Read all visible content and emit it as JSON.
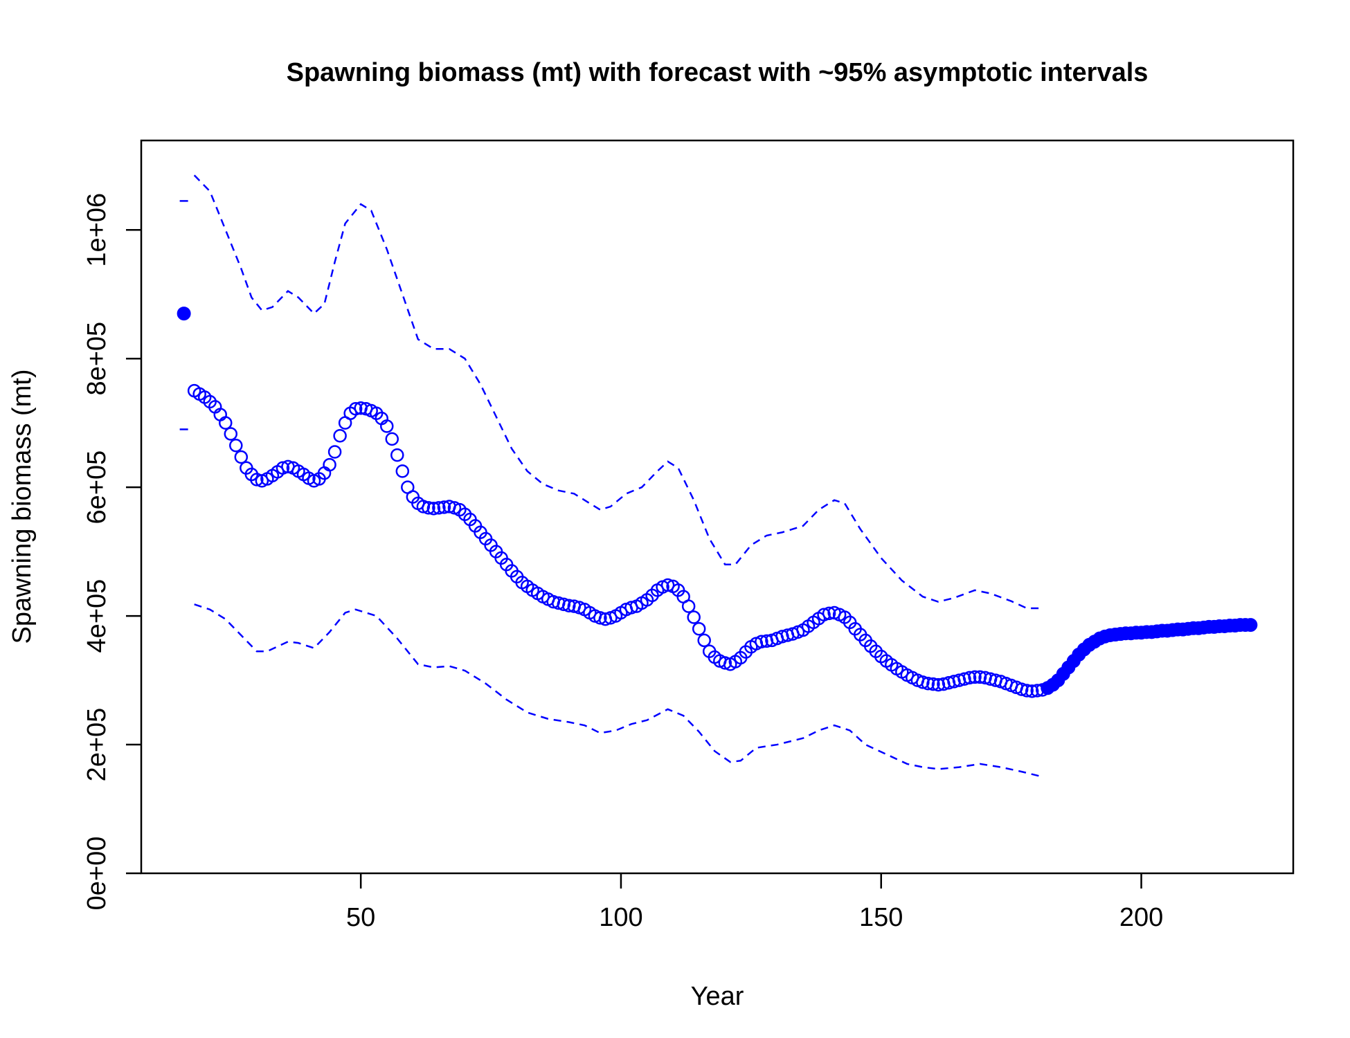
{
  "chart_data": {
    "type": "line",
    "title": "Spawning biomass (mt) with forecast with ~95% asymptotic intervals",
    "x_label": "Year",
    "y_label": "Spawning biomass (mt)",
    "xlim": [
      7.8,
      229.2
    ],
    "ylim": [
      0,
      1139000
    ],
    "xticks": [
      50,
      100,
      150,
      200
    ],
    "yticks": [
      {
        "value": 0,
        "label": "0e+00"
      },
      {
        "value": 200000,
        "label": "2e+05"
      },
      {
        "value": 400000,
        "label": "4e+05"
      },
      {
        "value": 600000,
        "label": "6e+05"
      },
      {
        "value": 800000,
        "label": "8e+05"
      },
      {
        "value": 1000000,
        "label": "1e+06"
      }
    ],
    "series": [
      {
        "style": "filled-points",
        "color": "#0000ff",
        "x": [
          16
        ],
        "values": [
          870000
        ]
      },
      {
        "style": "tick",
        "color": "#0000ff",
        "x": [
          16
        ],
        "values": [
          1045000
        ]
      },
      {
        "style": "tick",
        "color": "#0000ff",
        "x": [
          16
        ],
        "values": [
          690000
        ]
      },
      {
        "style": "open-points",
        "color": "#0000ff",
        "x": [
          18,
          19,
          20,
          21,
          22,
          23,
          24,
          25,
          26,
          27,
          28,
          29,
          30,
          31,
          32,
          33,
          34,
          35,
          36,
          37,
          38,
          39,
          40,
          41,
          42,
          43,
          44,
          45,
          46,
          47,
          48,
          49,
          50,
          51,
          52,
          53,
          54,
          55,
          56,
          57,
          58,
          59,
          60,
          61,
          62,
          63,
          64,
          65,
          66,
          67,
          68,
          69,
          70,
          71,
          72,
          73,
          74,
          75,
          76,
          77,
          78,
          79,
          80,
          81,
          82,
          83,
          84,
          85,
          86,
          87,
          88,
          89,
          90,
          91,
          92,
          93,
          94,
          95,
          96,
          97,
          98,
          99,
          100,
          101,
          102,
          103,
          104,
          105,
          106,
          107,
          108,
          109,
          110,
          111,
          112,
          113,
          114,
          115,
          116,
          117,
          118,
          119,
          120,
          121,
          122,
          123,
          124,
          125,
          126,
          127,
          128,
          129,
          130,
          131,
          132,
          133,
          134,
          135,
          136,
          137,
          138,
          139,
          140,
          141,
          142,
          143,
          144,
          145,
          146,
          147,
          148,
          149,
          150,
          151,
          152,
          153,
          154,
          155,
          156,
          157,
          158,
          159,
          160,
          161,
          162,
          163,
          164,
          165,
          166,
          167,
          168,
          169,
          170,
          171,
          172,
          173,
          174,
          175,
          176,
          177,
          178,
          179,
          180,
          181
        ],
        "values": [
          750000,
          745000,
          740000,
          733000,
          725000,
          713000,
          700000,
          683000,
          665000,
          647000,
          630000,
          620000,
          612000,
          610000,
          613000,
          618000,
          624000,
          630000,
          632000,
          630000,
          625000,
          620000,
          614000,
          610000,
          613000,
          622000,
          635000,
          655000,
          680000,
          700000,
          715000,
          722000,
          723000,
          722000,
          719000,
          715000,
          707000,
          695000,
          675000,
          650000,
          625000,
          600000,
          585000,
          575000,
          570000,
          568000,
          567000,
          568000,
          569000,
          570000,
          568000,
          565000,
          558000,
          550000,
          540000,
          530000,
          520000,
          510000,
          500000,
          490000,
          480000,
          470000,
          461000,
          452000,
          446000,
          440000,
          435000,
          430000,
          426000,
          422000,
          420000,
          418000,
          416000,
          415000,
          413000,
          410000,
          405000,
          400000,
          397000,
          395000,
          397000,
          400000,
          405000,
          410000,
          413000,
          415000,
          420000,
          425000,
          432000,
          440000,
          445000,
          448000,
          446000,
          440000,
          430000,
          415000,
          398000,
          380000,
          362000,
          345000,
          336000,
          330000,
          327000,
          325000,
          329000,
          335000,
          344000,
          352000,
          357000,
          360000,
          361000,
          362000,
          365000,
          368000,
          370000,
          372000,
          375000,
          378000,
          384000,
          390000,
          396000,
          402000,
          404000,
          405000,
          402000,
          398000,
          390000,
          380000,
          371000,
          362000,
          353000,
          345000,
          337000,
          330000,
          324000,
          318000,
          313000,
          308000,
          304000,
          300000,
          297000,
          295000,
          294000,
          293000,
          294000,
          296000,
          298000,
          300000,
          302000,
          304000,
          305000,
          305000,
          304000,
          302000,
          300000,
          298000,
          295000,
          292000,
          289000,
          286000,
          284000,
          283000,
          284000,
          285000
        ]
      },
      {
        "style": "filled-points",
        "color": "#0000ff",
        "x": [
          182,
          183,
          184,
          185,
          186,
          187,
          188,
          189,
          190,
          191,
          192,
          193,
          194,
          195,
          196,
          197,
          198,
          199,
          200,
          201,
          202,
          203,
          204,
          205,
          206,
          207,
          208,
          209,
          210,
          211,
          212,
          213,
          214,
          215,
          216,
          217,
          218,
          219,
          220,
          221
        ],
        "values": [
          288000,
          293000,
          300000,
          310000,
          320000,
          330000,
          340000,
          348000,
          355000,
          360000,
          365000,
          368000,
          370000,
          371000,
          372000,
          373000,
          373000,
          374000,
          374000,
          375000,
          375000,
          376000,
          377000,
          377000,
          378000,
          379000,
          379000,
          380000,
          381000,
          381000,
          382000,
          383000,
          383000,
          384000,
          384000,
          385000,
          385000,
          386000,
          386000,
          386000
        ]
      },
      {
        "style": "dashed",
        "color": "#0000ff",
        "x": [
          18,
          21,
          24,
          27,
          29,
          31,
          33,
          36,
          38,
          41,
          43,
          45,
          47,
          50,
          52,
          55,
          58,
          61,
          64,
          67,
          70,
          73,
          76,
          79,
          82,
          85,
          88,
          91,
          94,
          96,
          98,
          101,
          104,
          107,
          109,
          111,
          114,
          117,
          120,
          122,
          125,
          128,
          131,
          135,
          138,
          141,
          143,
          146,
          150,
          154,
          158,
          161,
          164,
          168,
          171,
          175,
          178,
          181
        ],
        "values": [
          1085000,
          1060000,
          1000000,
          940000,
          895000,
          875000,
          880000,
          905000,
          895000,
          870000,
          885000,
          950000,
          1010000,
          1040000,
          1030000,
          970000,
          900000,
          830000,
          815000,
          815000,
          800000,
          760000,
          710000,
          660000,
          625000,
          605000,
          595000,
          590000,
          575000,
          565000,
          570000,
          590000,
          600000,
          625000,
          640000,
          630000,
          580000,
          520000,
          480000,
          480000,
          510000,
          525000,
          530000,
          540000,
          565000,
          580000,
          575000,
          535000,
          490000,
          455000,
          430000,
          422000,
          428000,
          440000,
          435000,
          423000,
          412000,
          412000
        ]
      },
      {
        "style": "dashed",
        "color": "#0000ff",
        "x": [
          18,
          21,
          24,
          27,
          30,
          32,
          36,
          38,
          41,
          44,
          47,
          49,
          53,
          57,
          61,
          64,
          67,
          70,
          74,
          78,
          82,
          86,
          90,
          93,
          96,
          99,
          102,
          105,
          109,
          112,
          115,
          118,
          121,
          123,
          126,
          130,
          135,
          138,
          141,
          144,
          147,
          151,
          155,
          158,
          161,
          165,
          169,
          173,
          177,
          181
        ],
        "values": [
          418000,
          410000,
          395000,
          370000,
          345000,
          345000,
          360000,
          358000,
          350000,
          375000,
          405000,
          410000,
          400000,
          365000,
          325000,
          320000,
          322000,
          315000,
          295000,
          270000,
          250000,
          240000,
          235000,
          230000,
          218000,
          222000,
          232000,
          238000,
          255000,
          245000,
          220000,
          190000,
          173000,
          175000,
          195000,
          200000,
          210000,
          222000,
          230000,
          222000,
          200000,
          185000,
          170000,
          165000,
          162000,
          165000,
          170000,
          165000,
          158000,
          150000
        ]
      }
    ]
  }
}
